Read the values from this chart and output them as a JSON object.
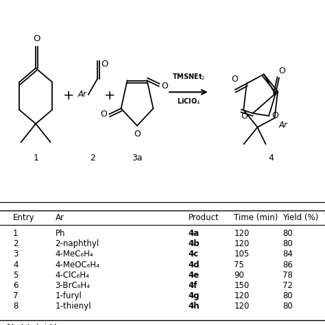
{
  "header": [
    "Entry",
    "Ar",
    "Product",
    "Time (min)",
    "Yield (%)"
  ],
  "rows": [
    [
      "1",
      "Ph",
      "4a",
      "120",
      "80"
    ],
    [
      "2",
      "2-naphthyl",
      "4b",
      "120",
      "80"
    ],
    [
      "3",
      "4-MeC₆H₄",
      "4c",
      "105",
      "84"
    ],
    [
      "4",
      "4-MeOC₆H₄",
      "4d",
      "75",
      "86"
    ],
    [
      "5",
      "4-ClC₆H₄",
      "4e",
      "90",
      "78"
    ],
    [
      "6",
      "3-BrC₆H₄",
      "4f",
      "150",
      "72"
    ],
    [
      "7",
      "1-furyl",
      "4g",
      "120",
      "80"
    ],
    [
      "8",
      "1-thienyl",
      "4h",
      "120",
      "80"
    ]
  ],
  "footnote": "a Isolated yields.",
  "bg_color": "#ffffff",
  "text_color": "#000000",
  "fontsize": 8.5
}
